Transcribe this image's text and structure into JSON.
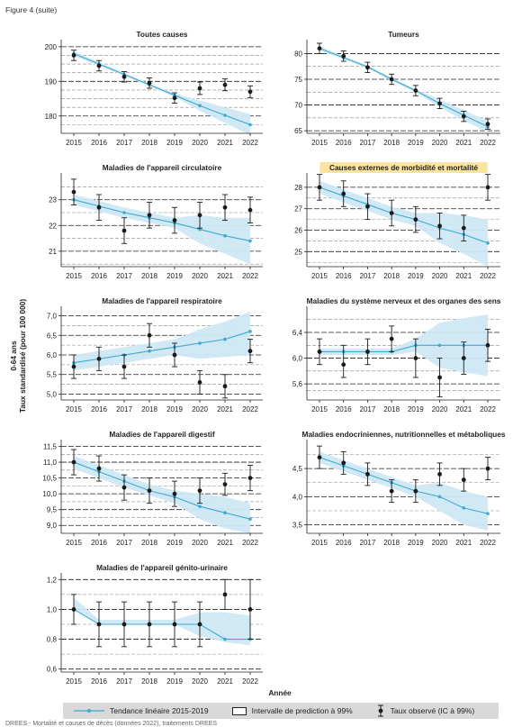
{
  "figure_label": "Figure 4 (suite)",
  "y_axis_title_line1": "0-64 ans",
  "y_axis_title_line2": "Taux standardisé (pour 100 000)",
  "x_axis_title": "Année",
  "legend": {
    "trend": "Tendance linéaire 2015-2019",
    "interval": "Intervalle de prediction à 99%",
    "observed": "Taux observé (IC à 99%)"
  },
  "footnote": "DREES - Mortalité et causes de décès (données 2022), traitements DREES",
  "colors": {
    "trend": "#3fa9d0",
    "band": "#cde8f4",
    "points": "#1a1a1a",
    "highlight": "#fbe3a0"
  },
  "chart_data": [
    {
      "type": "line",
      "title": "Toutes causes",
      "highlight": false,
      "x": [
        2015,
        2016,
        2017,
        2018,
        2019,
        2020,
        2021,
        2022
      ],
      "ylim": [
        175,
        201
      ],
      "yticks": [
        180,
        190,
        200
      ],
      "tick_labels": [
        "180",
        "190",
        "200"
      ],
      "trend": [
        198.0,
        195.0,
        192.0,
        189.0,
        186.0,
        183.0,
        180.2,
        177.5
      ],
      "band_low": [
        197.3,
        194.5,
        191.6,
        188.6,
        185.5,
        181.5,
        178.0,
        174.5
      ],
      "band_high": [
        198.7,
        195.5,
        192.4,
        189.4,
        186.5,
        184.5,
        182.5,
        180.5
      ],
      "observed": [
        197.5,
        194.5,
        191.3,
        189.5,
        185.2,
        188.0,
        189.0,
        187.0
      ],
      "ci_low": [
        196.0,
        193.0,
        189.8,
        188.0,
        183.7,
        186.2,
        187.3,
        185.3
      ],
      "ci_high": [
        199.0,
        196.0,
        192.8,
        191.0,
        186.7,
        189.8,
        190.7,
        188.7
      ],
      "grid_dashed": [
        177.5,
        182.5,
        185,
        187.5,
        192.5,
        195,
        197.5
      ],
      "grid_solid": [
        180,
        190,
        200
      ]
    },
    {
      "type": "line",
      "title": "Tumeurs",
      "highlight": false,
      "x": [
        2015,
        2016,
        2017,
        2018,
        2019,
        2020,
        2021,
        2022
      ],
      "ylim": [
        64.5,
        82
      ],
      "yticks": [
        65,
        70,
        75,
        80
      ],
      "tick_labels": [
        "65",
        "70",
        "75",
        "80"
      ],
      "trend": [
        81.0,
        79.2,
        77.4,
        75.0,
        72.8,
        70.3,
        68.0,
        65.8
      ],
      "band_low": [
        80.6,
        78.9,
        77.1,
        74.7,
        72.5,
        69.5,
        67.0,
        64.7
      ],
      "band_high": [
        81.4,
        79.5,
        77.7,
        75.3,
        73.1,
        71.1,
        69.0,
        66.9
      ],
      "observed": [
        81.0,
        79.5,
        77.3,
        75.0,
        72.8,
        70.3,
        67.8,
        66.3
      ],
      "ci_low": [
        80.0,
        78.5,
        76.3,
        74.0,
        71.8,
        69.3,
        66.8,
        65.3
      ],
      "ci_high": [
        82.0,
        80.5,
        78.3,
        76.0,
        73.8,
        71.3,
        68.8,
        67.3
      ],
      "grid_dashed": [
        67.5,
        72.5,
        77.5
      ],
      "grid_solid": [
        65,
        70,
        75,
        80
      ]
    },
    {
      "type": "line",
      "title": "Maladies de l'appareil circulatoire",
      "highlight": false,
      "x": [
        2015,
        2016,
        2017,
        2018,
        2019,
        2020,
        2021,
        2022
      ],
      "ylim": [
        20.4,
        23.9
      ],
      "yticks": [
        21,
        22,
        23
      ],
      "tick_labels": [
        "21",
        "22",
        "23"
      ],
      "trend": [
        23.0,
        22.75,
        22.5,
        22.3,
        22.1,
        21.85,
        21.6,
        21.4
      ],
      "band_low": [
        22.8,
        22.55,
        22.3,
        22.1,
        21.9,
        21.3,
        20.9,
        20.5
      ],
      "band_high": [
        23.2,
        22.95,
        22.7,
        22.5,
        22.3,
        22.4,
        22.3,
        22.3
      ],
      "observed": [
        23.3,
        22.7,
        21.8,
        22.4,
        22.2,
        22.4,
        22.7,
        22.6
      ],
      "ci_low": [
        22.8,
        22.2,
        21.3,
        21.9,
        21.7,
        21.9,
        22.2,
        22.1
      ],
      "ci_high": [
        23.8,
        23.2,
        22.3,
        22.9,
        22.7,
        22.9,
        23.2,
        23.1
      ],
      "grid_dashed": [
        20.5,
        21.5,
        22.5,
        23.5
      ],
      "grid_solid": [
        21,
        22,
        23
      ]
    },
    {
      "type": "line",
      "title": "Causes externes de morbidité et mortalité",
      "highlight": true,
      "x": [
        2015,
        2016,
        2017,
        2018,
        2019,
        2020,
        2021,
        2022
      ],
      "ylim": [
        24.3,
        28.5
      ],
      "yticks": [
        25,
        26,
        27,
        28
      ],
      "tick_labels": [
        "25",
        "26",
        "27",
        "28"
      ],
      "trend": [
        28.0,
        27.6,
        27.2,
        26.8,
        26.5,
        26.1,
        25.8,
        25.4
      ],
      "band_low": [
        27.7,
        27.3,
        26.9,
        26.5,
        26.2,
        25.4,
        24.9,
        24.3
      ],
      "band_high": [
        28.3,
        27.9,
        27.5,
        27.1,
        26.8,
        26.8,
        26.7,
        26.5
      ],
      "observed": [
        28.0,
        27.7,
        27.1,
        26.8,
        26.5,
        26.2,
        26.1,
        28.0
      ],
      "ci_low": [
        27.4,
        27.1,
        26.5,
        26.2,
        25.9,
        25.6,
        25.5,
        27.4
      ],
      "ci_high": [
        28.6,
        28.3,
        27.7,
        27.4,
        27.1,
        26.8,
        26.7,
        28.6
      ],
      "grid_dashed": [
        24.5,
        25.5,
        26.5,
        27.5
      ],
      "grid_solid": [
        25,
        26,
        27,
        28
      ]
    },
    {
      "type": "line",
      "title": "Maladies de l'appareil respiratoire",
      "highlight": false,
      "x": [
        2015,
        2016,
        2017,
        2018,
        2019,
        2020,
        2021,
        2022
      ],
      "ylim": [
        4.85,
        7.15
      ],
      "yticks": [
        5.0,
        5.5,
        6.0,
        6.5,
        7.0
      ],
      "tick_labels": [
        "5,0",
        "5,5",
        "6,0",
        "6,5",
        "7,0"
      ],
      "trend": [
        5.8,
        5.9,
        6.0,
        6.1,
        6.2,
        6.3,
        6.4,
        6.6
      ],
      "band_low": [
        5.6,
        5.7,
        5.8,
        5.9,
        6.0,
        5.9,
        5.95,
        6.0
      ],
      "band_high": [
        6.0,
        6.1,
        6.2,
        6.3,
        6.4,
        6.65,
        6.85,
        7.1
      ],
      "observed": [
        5.7,
        5.9,
        5.7,
        6.5,
        6.0,
        5.3,
        5.2,
        6.1
      ],
      "ci_low": [
        5.4,
        5.6,
        5.4,
        6.2,
        5.7,
        5.0,
        4.9,
        5.8
      ],
      "ci_high": [
        6.0,
        6.2,
        6.0,
        6.8,
        6.3,
        5.6,
        5.5,
        6.4
      ],
      "grid_dashed": [
        5.25,
        5.75,
        6.25,
        6.75
      ],
      "grid_solid": [
        5.0,
        5.5,
        6.0,
        6.5,
        7.0
      ]
    },
    {
      "type": "line",
      "title": "Maladies du système nerveux et des organes des sens",
      "highlight": false,
      "x": [
        2015,
        2016,
        2017,
        2018,
        2019,
        2020,
        2021,
        2022
      ],
      "ylim": [
        5.35,
        6.75
      ],
      "yticks": [
        5.6,
        6.0,
        6.4
      ],
      "tick_labels": [
        "5,6",
        "6,0",
        "6,4"
      ],
      "trend": [
        6.1,
        6.1,
        6.1,
        6.1,
        6.2,
        6.2,
        6.2,
        6.2
      ],
      "band_low": [
        6.05,
        6.05,
        6.05,
        6.05,
        6.1,
        5.85,
        5.78,
        5.72
      ],
      "band_high": [
        6.15,
        6.15,
        6.15,
        6.15,
        6.3,
        6.55,
        6.62,
        6.68
      ],
      "observed": [
        6.1,
        5.9,
        6.1,
        6.3,
        6.0,
        5.7,
        6.0,
        6.2
      ],
      "ci_low": [
        5.9,
        5.7,
        5.9,
        6.1,
        5.7,
        5.4,
        5.75,
        5.95
      ],
      "ci_high": [
        6.3,
        6.2,
        6.3,
        6.5,
        6.3,
        6.0,
        6.25,
        6.45
      ],
      "grid_dashed": [
        5.5,
        5.8,
        6.2,
        6.6
      ],
      "grid_solid": [
        5.6,
        6.0,
        6.4
      ]
    },
    {
      "type": "line",
      "title": "Maladies de l'appareil digestif",
      "highlight": false,
      "x": [
        2015,
        2016,
        2017,
        2018,
        2019,
        2020,
        2021,
        2022
      ],
      "ylim": [
        8.75,
        11.6
      ],
      "yticks": [
        9.0,
        9.5,
        10.0,
        10.5,
        11.0,
        11.5
      ],
      "tick_labels": [
        "9,0",
        "9,5",
        "10,0",
        "10,5",
        "11,0",
        "11,5"
      ],
      "trend": [
        11.0,
        10.7,
        10.4,
        10.1,
        9.9,
        9.6,
        9.4,
        9.2
      ],
      "band_low": [
        10.8,
        10.5,
        10.2,
        9.95,
        9.7,
        9.2,
        8.9,
        8.75
      ],
      "band_high": [
        11.2,
        10.9,
        10.6,
        10.3,
        10.1,
        10.0,
        9.9,
        9.7
      ],
      "observed": [
        11.0,
        10.8,
        10.2,
        10.1,
        10.0,
        10.1,
        10.3,
        10.5
      ],
      "ci_low": [
        10.6,
        10.4,
        9.8,
        9.7,
        9.6,
        9.7,
        9.95,
        10.1
      ],
      "ci_high": [
        11.4,
        11.2,
        10.6,
        10.5,
        10.4,
        10.5,
        10.65,
        10.9
      ],
      "grid_dashed": [
        9.25,
        9.75,
        10.25,
        10.75,
        11.25
      ],
      "grid_solid": [
        9.0,
        9.5,
        10.0,
        10.5,
        11.0,
        11.5
      ]
    },
    {
      "type": "line",
      "title": "Maladies endocriniennes, nutritionnelles et métaboliques",
      "highlight": false,
      "x": [
        2015,
        2016,
        2017,
        2018,
        2019,
        2020,
        2021,
        2022
      ],
      "ylim": [
        3.35,
        4.95
      ],
      "yticks": [
        3.5,
        4.0,
        4.5
      ],
      "tick_labels": [
        "3,5",
        "4,0",
        "4,5"
      ],
      "trend": [
        4.7,
        4.55,
        4.4,
        4.25,
        4.1,
        4.0,
        3.8,
        3.7
      ],
      "band_low": [
        4.6,
        4.45,
        4.3,
        4.15,
        4.0,
        3.75,
        3.5,
        3.4
      ],
      "band_high": [
        4.8,
        4.65,
        4.5,
        4.35,
        4.2,
        4.25,
        4.1,
        4.0
      ],
      "observed": [
        4.7,
        4.6,
        4.4,
        4.1,
        4.1,
        4.4,
        4.3,
        4.5
      ],
      "ci_low": [
        4.5,
        4.4,
        4.2,
        3.9,
        3.9,
        4.2,
        4.1,
        4.3
      ],
      "ci_high": [
        4.9,
        4.8,
        4.6,
        4.3,
        4.3,
        4.6,
        4.5,
        4.7
      ],
      "grid_dashed": [
        3.75,
        4.25,
        4.75
      ],
      "grid_solid": [
        3.5,
        4.0,
        4.5
      ]
    },
    {
      "type": "line",
      "title": "Maladies de l'appareil génito-urinaire",
      "highlight": false,
      "x": [
        2015,
        2016,
        2017,
        2018,
        2019,
        2020,
        2021,
        2022
      ],
      "ylim": [
        0.58,
        1.22
      ],
      "yticks": [
        0.6,
        0.8,
        1.0,
        1.2
      ],
      "tick_labels": [
        "0,6",
        "0,8",
        "1,0",
        "1,2"
      ],
      "trend": [
        1.0,
        0.9,
        0.9,
        0.9,
        0.9,
        0.9,
        0.8,
        0.8
      ],
      "band_low": [
        1.0,
        0.9,
        0.9,
        0.9,
        0.9,
        0.82,
        0.78,
        0.76
      ],
      "band_high": [
        1.08,
        0.93,
        0.93,
        0.93,
        0.93,
        0.98,
        0.98,
        0.96
      ],
      "observed": [
        1.0,
        0.9,
        0.9,
        0.9,
        0.9,
        0.9,
        1.1,
        1.0
      ],
      "ci_low": [
        0.9,
        0.75,
        0.75,
        0.75,
        0.75,
        0.75,
        1.0,
        0.8
      ],
      "ci_high": [
        1.1,
        1.05,
        1.05,
        1.05,
        1.05,
        1.05,
        1.2,
        1.2
      ],
      "grid_dashed": [
        0.7,
        0.9,
        1.1
      ],
      "grid_solid": [
        0.6,
        0.8,
        1.0,
        1.2
      ]
    }
  ]
}
